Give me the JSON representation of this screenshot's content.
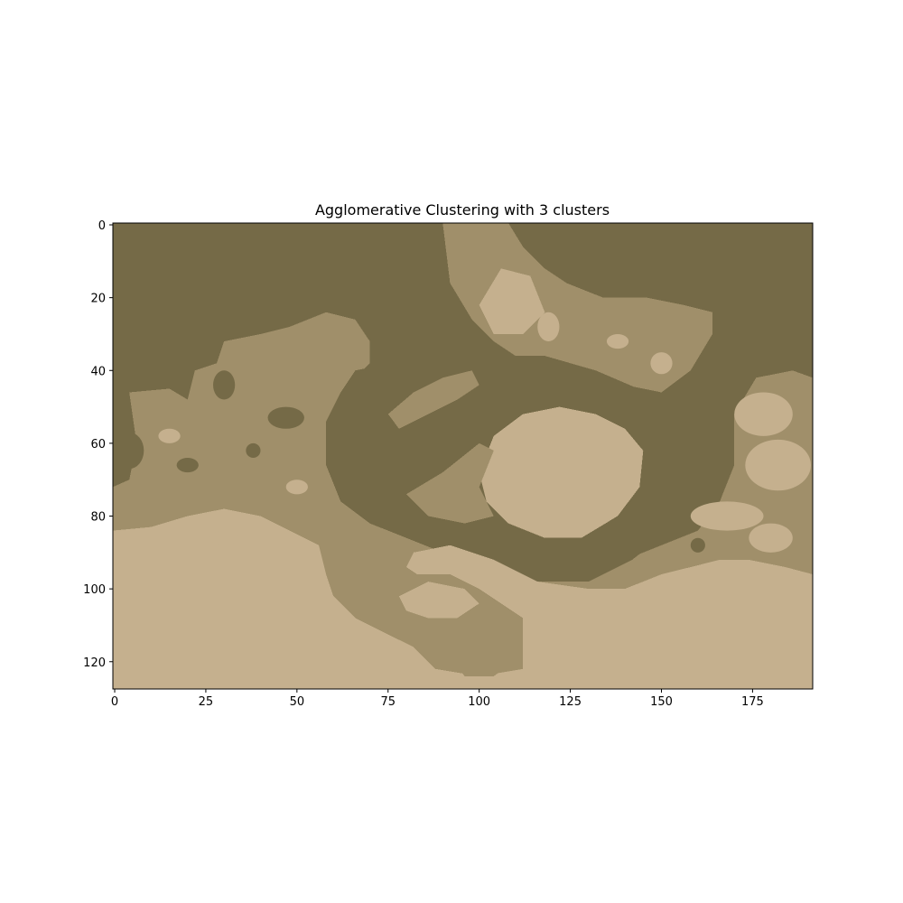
{
  "chart_data": {
    "type": "heatmap",
    "title": "Agglomerative Clustering with 3 clusters",
    "xlabel": "",
    "ylabel": "",
    "image_width": 192,
    "image_height": 128,
    "xlim": [
      -0.5,
      191.5
    ],
    "ylim": [
      127.5,
      -0.5
    ],
    "xticks": [
      0,
      25,
      50,
      75,
      100,
      125,
      150,
      175
    ],
    "yticks": [
      0,
      20,
      40,
      60,
      80,
      100,
      120
    ],
    "grid": false,
    "legend": "none",
    "clusters": [
      {
        "label": 0,
        "color": "#756b47"
      },
      {
        "label": 1,
        "color": "#a08f6b"
      },
      {
        "label": 2,
        "color": "#c5b08e"
      }
    ]
  }
}
